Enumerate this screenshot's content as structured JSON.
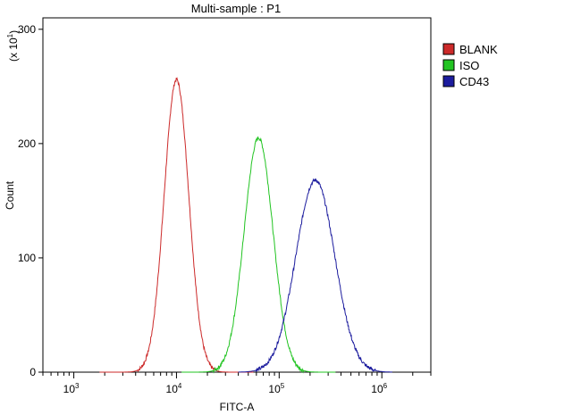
{
  "chart_data": {
    "type": "line",
    "title": "Multi-sample : P1",
    "xlabel": "FITC-A",
    "ylabel": "Count",
    "y_multiplier_base": "(x 10",
    "y_multiplier_exp": "1",
    "y_multiplier_close": ")",
    "x_scale": "log",
    "xlim": [
      500,
      3000000
    ],
    "ylim": [
      0,
      310
    ],
    "x_ticks": [
      {
        "value": 1000,
        "base": "10",
        "exp": "3"
      },
      {
        "value": 10000,
        "base": "10",
        "exp": "4"
      },
      {
        "value": 100000,
        "base": "10",
        "exp": "5"
      },
      {
        "value": 1000000,
        "base": "10",
        "exp": "6"
      }
    ],
    "y_ticks": [
      {
        "value": 0,
        "label": "0"
      },
      {
        "value": 100,
        "label": "100"
      },
      {
        "value": 200,
        "label": "200"
      },
      {
        "value": 300,
        "label": "300"
      }
    ],
    "legend_position": "top-right",
    "series": [
      {
        "name": "BLANK",
        "color": "#cc2a2a",
        "center": 10000,
        "peak": 256,
        "width": 0.12
      },
      {
        "name": "ISO",
        "color": "#22c422",
        "center": 63000,
        "peak": 205,
        "width": 0.14
      },
      {
        "name": "CD43",
        "color": "#1c1c9e",
        "center": 225000,
        "peak": 168,
        "width": 0.19
      }
    ]
  }
}
